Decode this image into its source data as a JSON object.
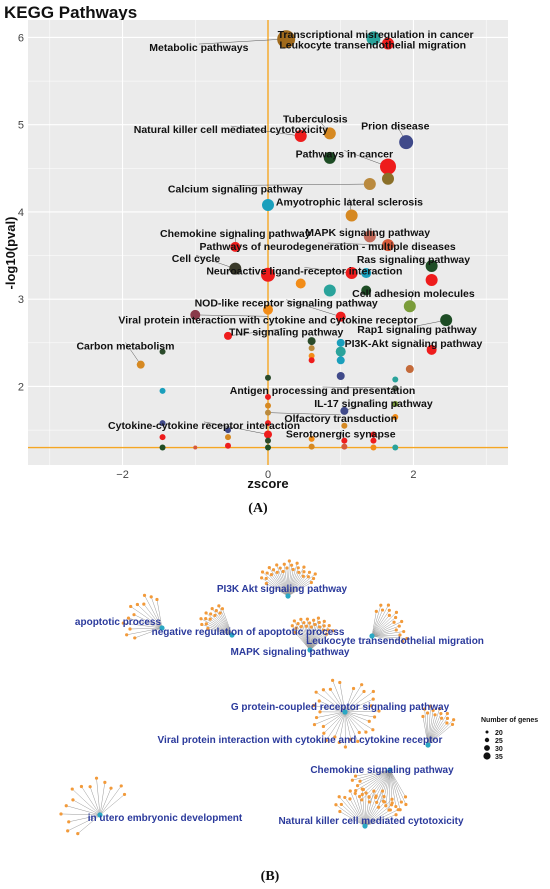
{
  "figure": {
    "caption_a": "(A)",
    "caption_b": "(B)"
  },
  "chart_data": [
    {
      "type": "scatter",
      "title": "KEGG Pathways",
      "xlabel": "zscore",
      "ylabel": "-log10(pval)",
      "xlim": [
        -3.3,
        3.3
      ],
      "ylim": [
        1.1,
        6.2
      ],
      "xticks": [
        -2,
        0,
        2
      ],
      "yticks": [
        2,
        3,
        4,
        5,
        6
      ],
      "grid": true,
      "reference_lines": {
        "x": 0,
        "y": 1.3,
        "color": "#f5a623"
      },
      "points": [
        {
          "x": 0.25,
          "y": 5.98,
          "r": 9,
          "c": "#a06a1c"
        },
        {
          "x": 1.45,
          "y": 5.99,
          "r": 7,
          "c": "#2aa39b"
        },
        {
          "x": 1.65,
          "y": 5.93,
          "r": 6,
          "c": "#ee1c1c"
        },
        {
          "x": 0.45,
          "y": 4.87,
          "r": 6,
          "c": "#ee1c1c"
        },
        {
          "x": 0.85,
          "y": 4.9,
          "r": 6,
          "c": "#d68922"
        },
        {
          "x": 1.9,
          "y": 4.8,
          "r": 7,
          "c": "#404a8a"
        },
        {
          "x": 0.85,
          "y": 4.62,
          "r": 6,
          "c": "#1e4d25"
        },
        {
          "x": 1.65,
          "y": 4.52,
          "r": 8,
          "c": "#ee1c1c"
        },
        {
          "x": 1.65,
          "y": 4.38,
          "r": 6,
          "c": "#8a6f28"
        },
        {
          "x": 1.4,
          "y": 4.32,
          "r": 6,
          "c": "#ba8a3e"
        },
        {
          "x": 0.0,
          "y": 4.08,
          "r": 6,
          "c": "#1a9fbc"
        },
        {
          "x": 1.15,
          "y": 3.96,
          "r": 6,
          "c": "#d68922"
        },
        {
          "x": 1.4,
          "y": 3.72,
          "r": 6,
          "c": "#c46a5a"
        },
        {
          "x": -0.45,
          "y": 3.6,
          "r": 5,
          "c": "#ee1c1c"
        },
        {
          "x": 1.65,
          "y": 3.62,
          "r": 6,
          "c": "#d65a3a"
        },
        {
          "x": 2.25,
          "y": 3.38,
          "r": 6,
          "c": "#1e4d25"
        },
        {
          "x": 2.25,
          "y": 3.22,
          "r": 6,
          "c": "#ee1c1c"
        },
        {
          "x": -0.45,
          "y": 3.35,
          "r": 6,
          "c": "#3a3a2a"
        },
        {
          "x": 0.0,
          "y": 3.28,
          "r": 7,
          "c": "#ee1c1c"
        },
        {
          "x": 1.15,
          "y": 3.3,
          "r": 6,
          "c": "#ee1c1c"
        },
        {
          "x": 1.35,
          "y": 3.3,
          "r": 5,
          "c": "#1a9fbc"
        },
        {
          "x": 0.45,
          "y": 3.18,
          "r": 5,
          "c": "#f28c18"
        },
        {
          "x": 0.85,
          "y": 3.1,
          "r": 6,
          "c": "#2aa39b"
        },
        {
          "x": 1.35,
          "y": 3.1,
          "r": 5,
          "c": "#1e4d25"
        },
        {
          "x": 1.95,
          "y": 2.92,
          "r": 6,
          "c": "#7a9c3a"
        },
        {
          "x": 0.0,
          "y": 2.88,
          "r": 5,
          "c": "#f28c18"
        },
        {
          "x": -1.0,
          "y": 2.82,
          "r": 5,
          "c": "#8a3a4a"
        },
        {
          "x": 1.0,
          "y": 2.8,
          "r": 5,
          "c": "#ee1c1c"
        },
        {
          "x": 2.45,
          "y": 2.76,
          "r": 6,
          "c": "#1e4d25"
        },
        {
          "x": -0.55,
          "y": 2.58,
          "r": 4,
          "c": "#ee1c1c"
        },
        {
          "x": 0.6,
          "y": 2.52,
          "r": 4,
          "c": "#2a4a2a"
        },
        {
          "x": 0.6,
          "y": 2.44,
          "r": 3,
          "c": "#ba8a3e"
        },
        {
          "x": 1.0,
          "y": 2.5,
          "r": 4,
          "c": "#1a9fbc"
        },
        {
          "x": 2.25,
          "y": 2.42,
          "r": 5,
          "c": "#ee1c1c"
        },
        {
          "x": 0.6,
          "y": 2.35,
          "r": 3,
          "c": "#f28c18"
        },
        {
          "x": 1.0,
          "y": 2.4,
          "r": 5,
          "c": "#2aa39b"
        },
        {
          "x": 1.0,
          "y": 2.3,
          "r": 4,
          "c": "#1a9fbc"
        },
        {
          "x": -1.45,
          "y": 2.4,
          "r": 3,
          "c": "#2a4a2a"
        },
        {
          "x": -1.75,
          "y": 2.25,
          "r": 4,
          "c": "#d68922"
        },
        {
          "x": 0.6,
          "y": 2.3,
          "r": 3,
          "c": "#ee1c1c"
        },
        {
          "x": 0.0,
          "y": 2.1,
          "r": 3,
          "c": "#2a4a2a"
        },
        {
          "x": 1.0,
          "y": 2.12,
          "r": 4,
          "c": "#404a8a"
        },
        {
          "x": 1.75,
          "y": 2.08,
          "r": 3,
          "c": "#2aa39b"
        },
        {
          "x": 1.95,
          "y": 2.2,
          "r": 4,
          "c": "#c46a3a"
        },
        {
          "x": -1.45,
          "y": 1.95,
          "r": 3,
          "c": "#1a9fbc"
        },
        {
          "x": 1.75,
          "y": 1.98,
          "r": 3,
          "c": "#4a5a4a"
        },
        {
          "x": 0.0,
          "y": 1.88,
          "r": 3,
          "c": "#ee1c1c"
        },
        {
          "x": 0.0,
          "y": 1.78,
          "r": 3,
          "c": "#d68922"
        },
        {
          "x": 1.75,
          "y": 1.8,
          "r": 3,
          "c": "#7a9c3a"
        },
        {
          "x": -1.45,
          "y": 1.58,
          "r": 3,
          "c": "#404a8a"
        },
        {
          "x": 0.0,
          "y": 1.7,
          "r": 3,
          "c": "#ba8a3e"
        },
        {
          "x": 1.05,
          "y": 1.72,
          "r": 4,
          "c": "#404a8a"
        },
        {
          "x": 1.75,
          "y": 1.65,
          "r": 3,
          "c": "#f28c18"
        },
        {
          "x": -0.55,
          "y": 1.5,
          "r": 3,
          "c": "#404a8a"
        },
        {
          "x": 0.0,
          "y": 1.58,
          "r": 3,
          "c": "#ee1c1c"
        },
        {
          "x": 1.05,
          "y": 1.55,
          "r": 3,
          "c": "#d68922"
        },
        {
          "x": 1.45,
          "y": 1.45,
          "r": 3,
          "c": "#ee1c1c"
        },
        {
          "x": -1.45,
          "y": 1.42,
          "r": 3,
          "c": "#ee1c1c"
        },
        {
          "x": -0.55,
          "y": 1.42,
          "r": 3,
          "c": "#d68922"
        },
        {
          "x": 0.0,
          "y": 1.45,
          "r": 4,
          "c": "#ee1c1c"
        },
        {
          "x": 0.0,
          "y": 1.38,
          "r": 3,
          "c": "#2a4a2a"
        },
        {
          "x": 0.6,
          "y": 1.4,
          "r": 3,
          "c": "#f28c18"
        },
        {
          "x": 1.05,
          "y": 1.38,
          "r": 3,
          "c": "#ee1c1c"
        },
        {
          "x": 1.45,
          "y": 1.38,
          "r": 3,
          "c": "#ee1c1c"
        },
        {
          "x": -1.45,
          "y": 1.3,
          "r": 3,
          "c": "#1e4d25"
        },
        {
          "x": -1.0,
          "y": 1.3,
          "r": 2,
          "c": "#d65a3a"
        },
        {
          "x": -0.55,
          "y": 1.32,
          "r": 3,
          "c": "#ee1c1c"
        },
        {
          "x": 0.0,
          "y": 1.3,
          "r": 3,
          "c": "#1e4d25"
        },
        {
          "x": 0.6,
          "y": 1.31,
          "r": 3,
          "c": "#d68922"
        },
        {
          "x": 1.05,
          "y": 1.31,
          "r": 3,
          "c": "#d65a3a"
        },
        {
          "x": 1.45,
          "y": 1.3,
          "r": 3,
          "c": "#f28c18"
        },
        {
          "x": 1.75,
          "y": 1.3,
          "r": 3,
          "c": "#2aa39b"
        }
      ],
      "labels": [
        {
          "text": "Transcriptional misregulation in cancer",
          "x": 1.48,
          "y": 6.04,
          "lx": 1.45,
          "ly": 5.99
        },
        {
          "text": "Leukocyte transendothelial migration",
          "x": 1.44,
          "y": 5.92,
          "lx": 1.65,
          "ly": 5.93
        },
        {
          "text": "Metabolic pathways",
          "x": -0.95,
          "y": 5.89,
          "lx": 0.2,
          "ly": 5.98
        },
        {
          "text": "Tuberculosis",
          "x": 0.65,
          "y": 5.07,
          "lx": 0.85,
          "ly": 4.9
        },
        {
          "text": "Prion disease",
          "x": 1.75,
          "y": 4.99,
          "lx": 1.9,
          "ly": 4.8
        },
        {
          "text": "Natural killer cell mediated cytotoxicity",
          "x": -0.51,
          "y": 4.95,
          "lx": 0.45,
          "ly": 4.87
        },
        {
          "text": "Pathways in cancer",
          "x": 1.05,
          "y": 4.67,
          "lx": 1.65,
          "ly": 4.52
        },
        {
          "text": "Calcium signaling pathway",
          "x": -0.45,
          "y": 4.27,
          "lx": 1.4,
          "ly": 4.32
        },
        {
          "text": "Amyotrophic lateral sclerosis",
          "x": 1.12,
          "y": 4.12,
          "lx": 1.15,
          "ly": 3.96
        },
        {
          "text": "Chemokine signaling pathway",
          "x": -0.45,
          "y": 3.76,
          "lx": -0.45,
          "ly": 3.6
        },
        {
          "text": "MAPK signaling pathway",
          "x": 1.37,
          "y": 3.77,
          "lx": 1.4,
          "ly": 3.72
        },
        {
          "text": "Pathways of neurodegeneration - multiple diseases",
          "x": 0.82,
          "y": 3.61,
          "lx": 1.65,
          "ly": 3.62
        },
        {
          "text": "Ras signaling pathway",
          "x": 2.0,
          "y": 3.46,
          "lx": 2.25,
          "ly": 3.38
        },
        {
          "text": "Cell cycle",
          "x": -0.99,
          "y": 3.47,
          "lx": -0.45,
          "ly": 3.35
        },
        {
          "text": "Neuroactive ligand-receptor interaction",
          "x": 0.5,
          "y": 3.33,
          "lx": 1.15,
          "ly": 3.3
        },
        {
          "text": "Cell adhesion molecules",
          "x": 2.0,
          "y": 3.07,
          "lx": 1.95,
          "ly": 2.92
        },
        {
          "text": "NOD-like receptor signaling pathway",
          "x": 0.25,
          "y": 2.96,
          "lx": 1.0,
          "ly": 2.8
        },
        {
          "text": "Viral protein interaction with cytokine and cytokine receptor",
          "x": 0.0,
          "y": 2.77,
          "lx": -1.0,
          "ly": 2.82
        },
        {
          "text": "TNF signaling pathway",
          "x": 0.25,
          "y": 2.63,
          "lx": -0.55,
          "ly": 2.58
        },
        {
          "text": "Rap1 signaling pathway",
          "x": 2.05,
          "y": 2.66,
          "lx": 2.45,
          "ly": 2.76
        },
        {
          "text": "PI3K-Akt signaling pathway",
          "x": 2.0,
          "y": 2.5,
          "lx": 2.25,
          "ly": 2.42
        },
        {
          "text": "Carbon metabolism",
          "x": -1.96,
          "y": 2.47,
          "lx": -1.75,
          "ly": 2.25
        },
        {
          "text": "Antigen processing and presentation",
          "x": 0.75,
          "y": 1.96,
          "lx": 1.75,
          "ly": 1.98
        },
        {
          "text": "IL-17 signaling pathway",
          "x": 1.45,
          "y": 1.81,
          "lx": 1.05,
          "ly": 1.72
        },
        {
          "text": "Olfactory transduction",
          "x": 1.0,
          "y": 1.64,
          "lx": 0.0,
          "ly": 1.7
        },
        {
          "text": "Cytokine-cytokine receptor interaction",
          "x": -0.88,
          "y": 1.56,
          "lx": 0.0,
          "ly": 1.45
        },
        {
          "text": "Serotonergic synapse",
          "x": 1.0,
          "y": 1.46,
          "lx": 1.05,
          "ly": 1.38
        }
      ]
    },
    {
      "type": "network",
      "legend": {
        "title": "Number of genes",
        "items": [
          "20",
          "25",
          "30",
          "35"
        ]
      },
      "hubs": [
        {
          "id": "pi3k",
          "label": "PI3K Akt signaling pathway",
          "n": 28
        },
        {
          "id": "apop",
          "label": "apoptotic process",
          "n": 12
        },
        {
          "id": "negapop",
          "label": "negative regulation of apoptotic process",
          "n": 14
        },
        {
          "id": "leuk",
          "label": "Leukocyte transendothelial migration",
          "n": 16
        },
        {
          "id": "mapk",
          "label": "MAPK signaling pathway",
          "n": 24
        },
        {
          "id": "gpcr",
          "label": "G protein-coupled receptor signaling pathway",
          "n": 30
        },
        {
          "id": "viral",
          "label": "Viral protein interaction with cytokine and cytokine receptor",
          "n": 14
        },
        {
          "id": "chemo",
          "label": "Chemokine signaling pathway",
          "n": 22
        },
        {
          "id": "utero",
          "label": "in utero embryonic development",
          "n": 14
        },
        {
          "id": "nk",
          "label": "Natural killer cell mediated cytotoxicity",
          "n": 22
        }
      ]
    }
  ]
}
